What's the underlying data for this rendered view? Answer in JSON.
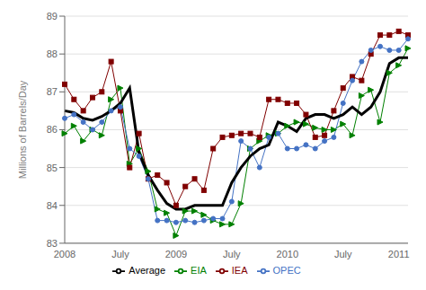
{
  "chart_data": {
    "type": "line",
    "ylabel": "Millions of Barrels/Day",
    "categories": [
      "2008",
      null,
      null,
      null,
      null,
      null,
      "July",
      null,
      null,
      null,
      null,
      null,
      "2009",
      null,
      null,
      null,
      null,
      null,
      "July",
      null,
      null,
      null,
      null,
      null,
      "2010",
      null,
      null,
      null,
      null,
      null,
      "July",
      null,
      null,
      null,
      null,
      null,
      "2011",
      null
    ],
    "series": [
      {
        "name": "EIA",
        "color": "#008000",
        "marker": "triangle",
        "values": [
          85.9,
          86.1,
          85.7,
          86.0,
          85.85,
          86.8,
          87.1,
          85.1,
          85.5,
          84.9,
          83.9,
          83.8,
          83.2,
          83.85,
          83.85,
          83.75,
          83.6,
          83.5,
          83.5,
          84.05,
          85.5,
          85.7,
          85.85,
          85.9,
          86.1,
          86.2,
          86.15,
          86.05,
          86.0,
          86.0,
          86.15,
          85.85,
          86.9,
          87.05,
          86.2,
          87.5,
          87.7,
          88.15
        ]
      },
      {
        "name": "IEA",
        "color": "#800000",
        "marker": "square",
        "values": [
          87.2,
          86.8,
          86.5,
          86.85,
          87.0,
          87.8,
          86.5,
          85.0,
          85.9,
          84.7,
          84.8,
          84.6,
          84.0,
          84.5,
          84.7,
          84.4,
          85.5,
          85.8,
          85.85,
          85.9,
          85.9,
          85.8,
          86.8,
          86.8,
          86.7,
          86.7,
          86.4,
          85.8,
          85.85,
          86.5,
          87.1,
          87.4,
          87.3,
          88.0,
          88.5,
          88.5,
          88.6,
          88.5
        ]
      },
      {
        "name": "OPEC",
        "color": "#4472c4",
        "marker": "circle",
        "values": [
          86.3,
          86.4,
          86.2,
          86.0,
          86.2,
          86.5,
          86.6,
          85.5,
          85.3,
          84.7,
          83.6,
          83.6,
          83.55,
          83.6,
          83.55,
          83.6,
          83.65,
          83.65,
          84.1,
          85.7,
          85.5,
          85.0,
          85.8,
          85.9,
          85.5,
          85.5,
          85.6,
          85.5,
          85.7,
          85.8,
          86.7,
          87.3,
          87.8,
          88.1,
          88.2,
          88.1,
          88.1,
          88.4
        ]
      },
      {
        "name": "Average",
        "color": "#000000",
        "marker": "none",
        "values": [
          86.5,
          86.45,
          86.3,
          86.25,
          86.35,
          86.5,
          86.7,
          87.1,
          85.4,
          84.8,
          84.4,
          84.05,
          83.9,
          83.9,
          84.0,
          84.0,
          84.0,
          84.0,
          84.6,
          85.0,
          85.3,
          85.5,
          85.6,
          86.2,
          86.1,
          85.95,
          86.3,
          86.4,
          86.4,
          86.3,
          86.4,
          86.6,
          86.4,
          86.6,
          87.0,
          87.75,
          87.9,
          87.9
        ]
      }
    ],
    "ylim": [
      83,
      89
    ],
    "yticks": [
      83,
      84,
      85,
      86,
      87,
      88,
      89
    ],
    "grid": true,
    "legend": "bottom"
  }
}
